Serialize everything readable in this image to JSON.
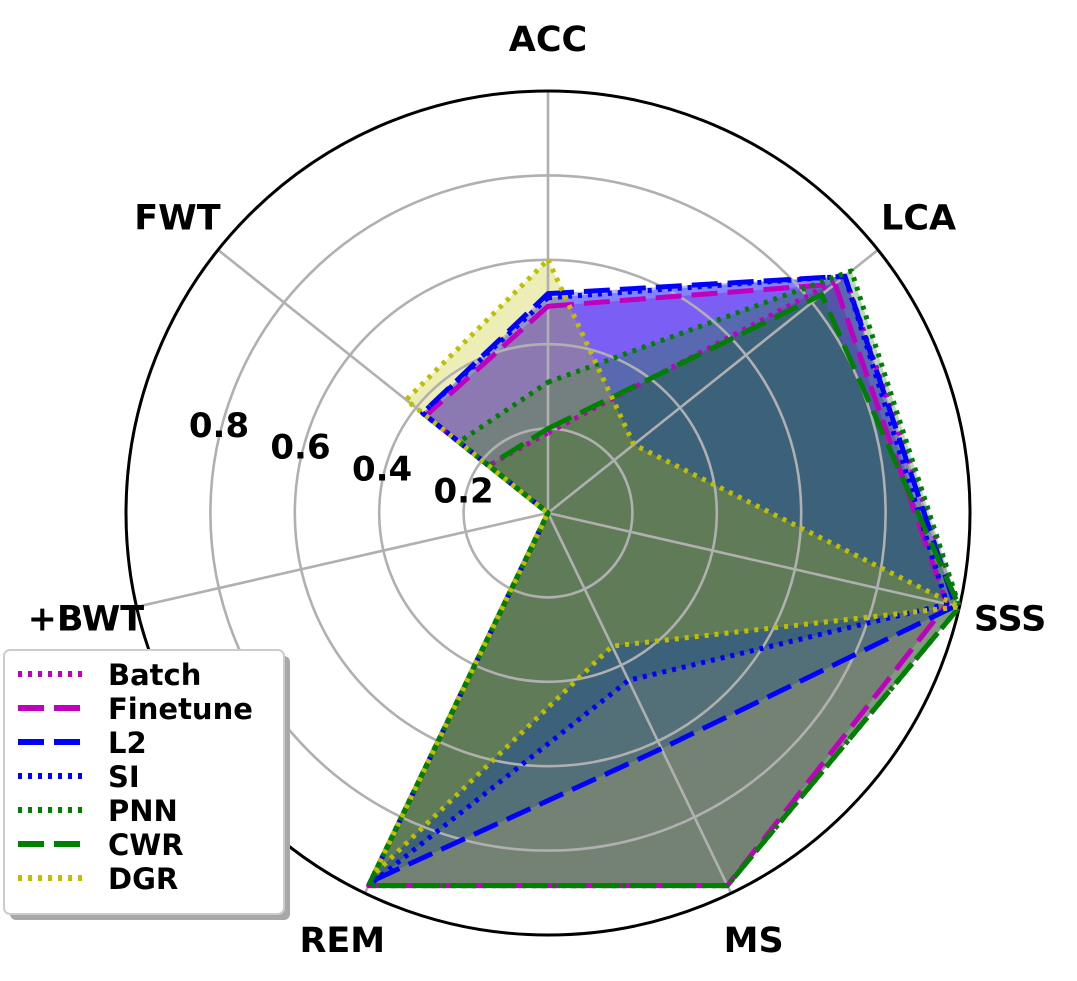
{
  "chart_data": {
    "type": "radar",
    "axes": [
      "ACC",
      "LCA",
      "SSS",
      "MS",
      "REM",
      "+BWT",
      "FWT"
    ],
    "rticks": [
      0.2,
      0.4,
      0.6,
      0.8
    ],
    "rtick_labels": [
      "0.2",
      "0.4",
      "0.6",
      "0.8"
    ],
    "rlim": [
      0,
      1
    ],
    "grid": true,
    "legend_position": "lower-left",
    "series": [
      {
        "name": "Batch",
        "color": "#bf00bf",
        "style": "dotted",
        "values": [
          0.19,
          0.9,
          1.0,
          0.98,
          0.98,
          0.0,
          0.18
        ],
        "fill": "#bf00bf",
        "fill_opacity": 0.28
      },
      {
        "name": "Finetune",
        "color": "#bf00bf",
        "style": "dashed",
        "values": [
          0.49,
          0.87,
          0.97,
          0.98,
          0.98,
          0.0,
          0.37
        ],
        "fill": "#bf00bf",
        "fill_opacity": 0.28
      },
      {
        "name": "L2",
        "color": "#0000ff",
        "style": "dashed",
        "values": [
          0.52,
          0.9,
          0.99,
          0.62,
          0.97,
          0.0,
          0.38
        ],
        "fill": "#0000ff",
        "fill_opacity": 0.28
      },
      {
        "name": "SI",
        "color": "#0000ff",
        "style": "dotted",
        "values": [
          0.51,
          0.9,
          0.97,
          0.44,
          0.98,
          0.0,
          0.38
        ],
        "fill": "#0000ff",
        "fill_opacity": 0.28
      },
      {
        "name": "PNN",
        "color": "#008000",
        "style": "dotted",
        "values": [
          0.31,
          0.92,
          1.0,
          0.98,
          0.98,
          0.0,
          0.27
        ],
        "fill": "#008000",
        "fill_opacity": 0.28
      },
      {
        "name": "CWR",
        "color": "#008000",
        "style": "dashed",
        "values": [
          0.2,
          0.83,
          1.0,
          0.98,
          0.98,
          0.0,
          0.18
        ],
        "fill": "#008000",
        "fill_opacity": 0.28
      },
      {
        "name": "DGR",
        "color": "#bfbf00",
        "style": "dotted",
        "values": [
          0.6,
          0.26,
          1.0,
          0.35,
          0.95,
          0.0,
          0.43
        ],
        "fill": "#bfbf00",
        "fill_opacity": 0.28
      }
    ]
  }
}
